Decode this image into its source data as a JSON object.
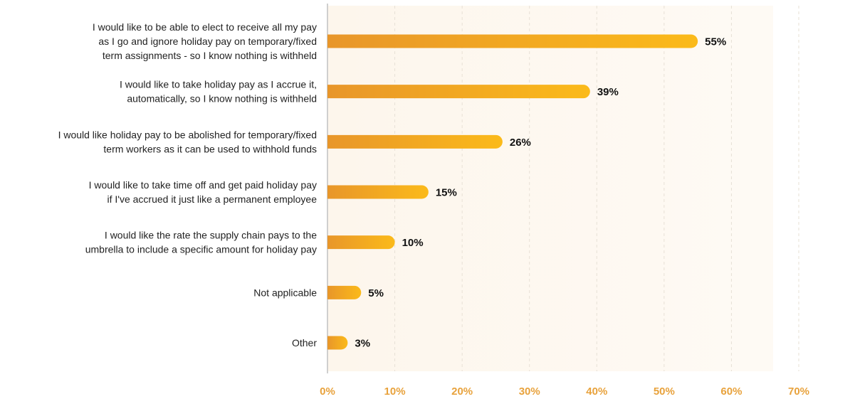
{
  "colors": {
    "bar_start": "#E8962A",
    "bar_end": "#FBBA1A",
    "plot_background": "#FDF6EC",
    "tick_label": "#E8A23C",
    "grid": "#E7E0D6",
    "axis": "#CFCFCF"
  },
  "chart_data": {
    "type": "bar",
    "orientation": "horizontal",
    "title": "",
    "xlabel": "",
    "ylabel": "",
    "xlim": [
      0,
      70
    ],
    "grid": true,
    "x_ticks": [
      "0%",
      "10%",
      "20%",
      "30%",
      "40%",
      "50%",
      "60%",
      "70%"
    ],
    "categories": [
      [
        "I would like to be able to elect to receive all my pay",
        "as I go and ignore holiday pay on temporary/fixed",
        "term assignments - so I know nothing is withheld"
      ],
      [
        "I would like to take holiday pay as I accrue it,",
        "automatically, so I know nothing is withheld"
      ],
      [
        "I would like holiday pay to be abolished for temporary/fixed",
        "term workers as it can be used to withhold funds"
      ],
      [
        "I would like to take time off and get paid holiday pay",
        "if I've accrued it just like a permanent employee"
      ],
      [
        "I would like the rate the supply chain pays to the",
        "umbrella to include a specific amount for holiday pay"
      ],
      [
        "Not applicable"
      ],
      [
        "Other"
      ]
    ],
    "values": [
      55,
      39,
      26,
      15,
      10,
      5,
      3
    ],
    "value_labels": [
      "55%",
      "39%",
      "26%",
      "15%",
      "10%",
      "5%",
      "3%"
    ]
  }
}
